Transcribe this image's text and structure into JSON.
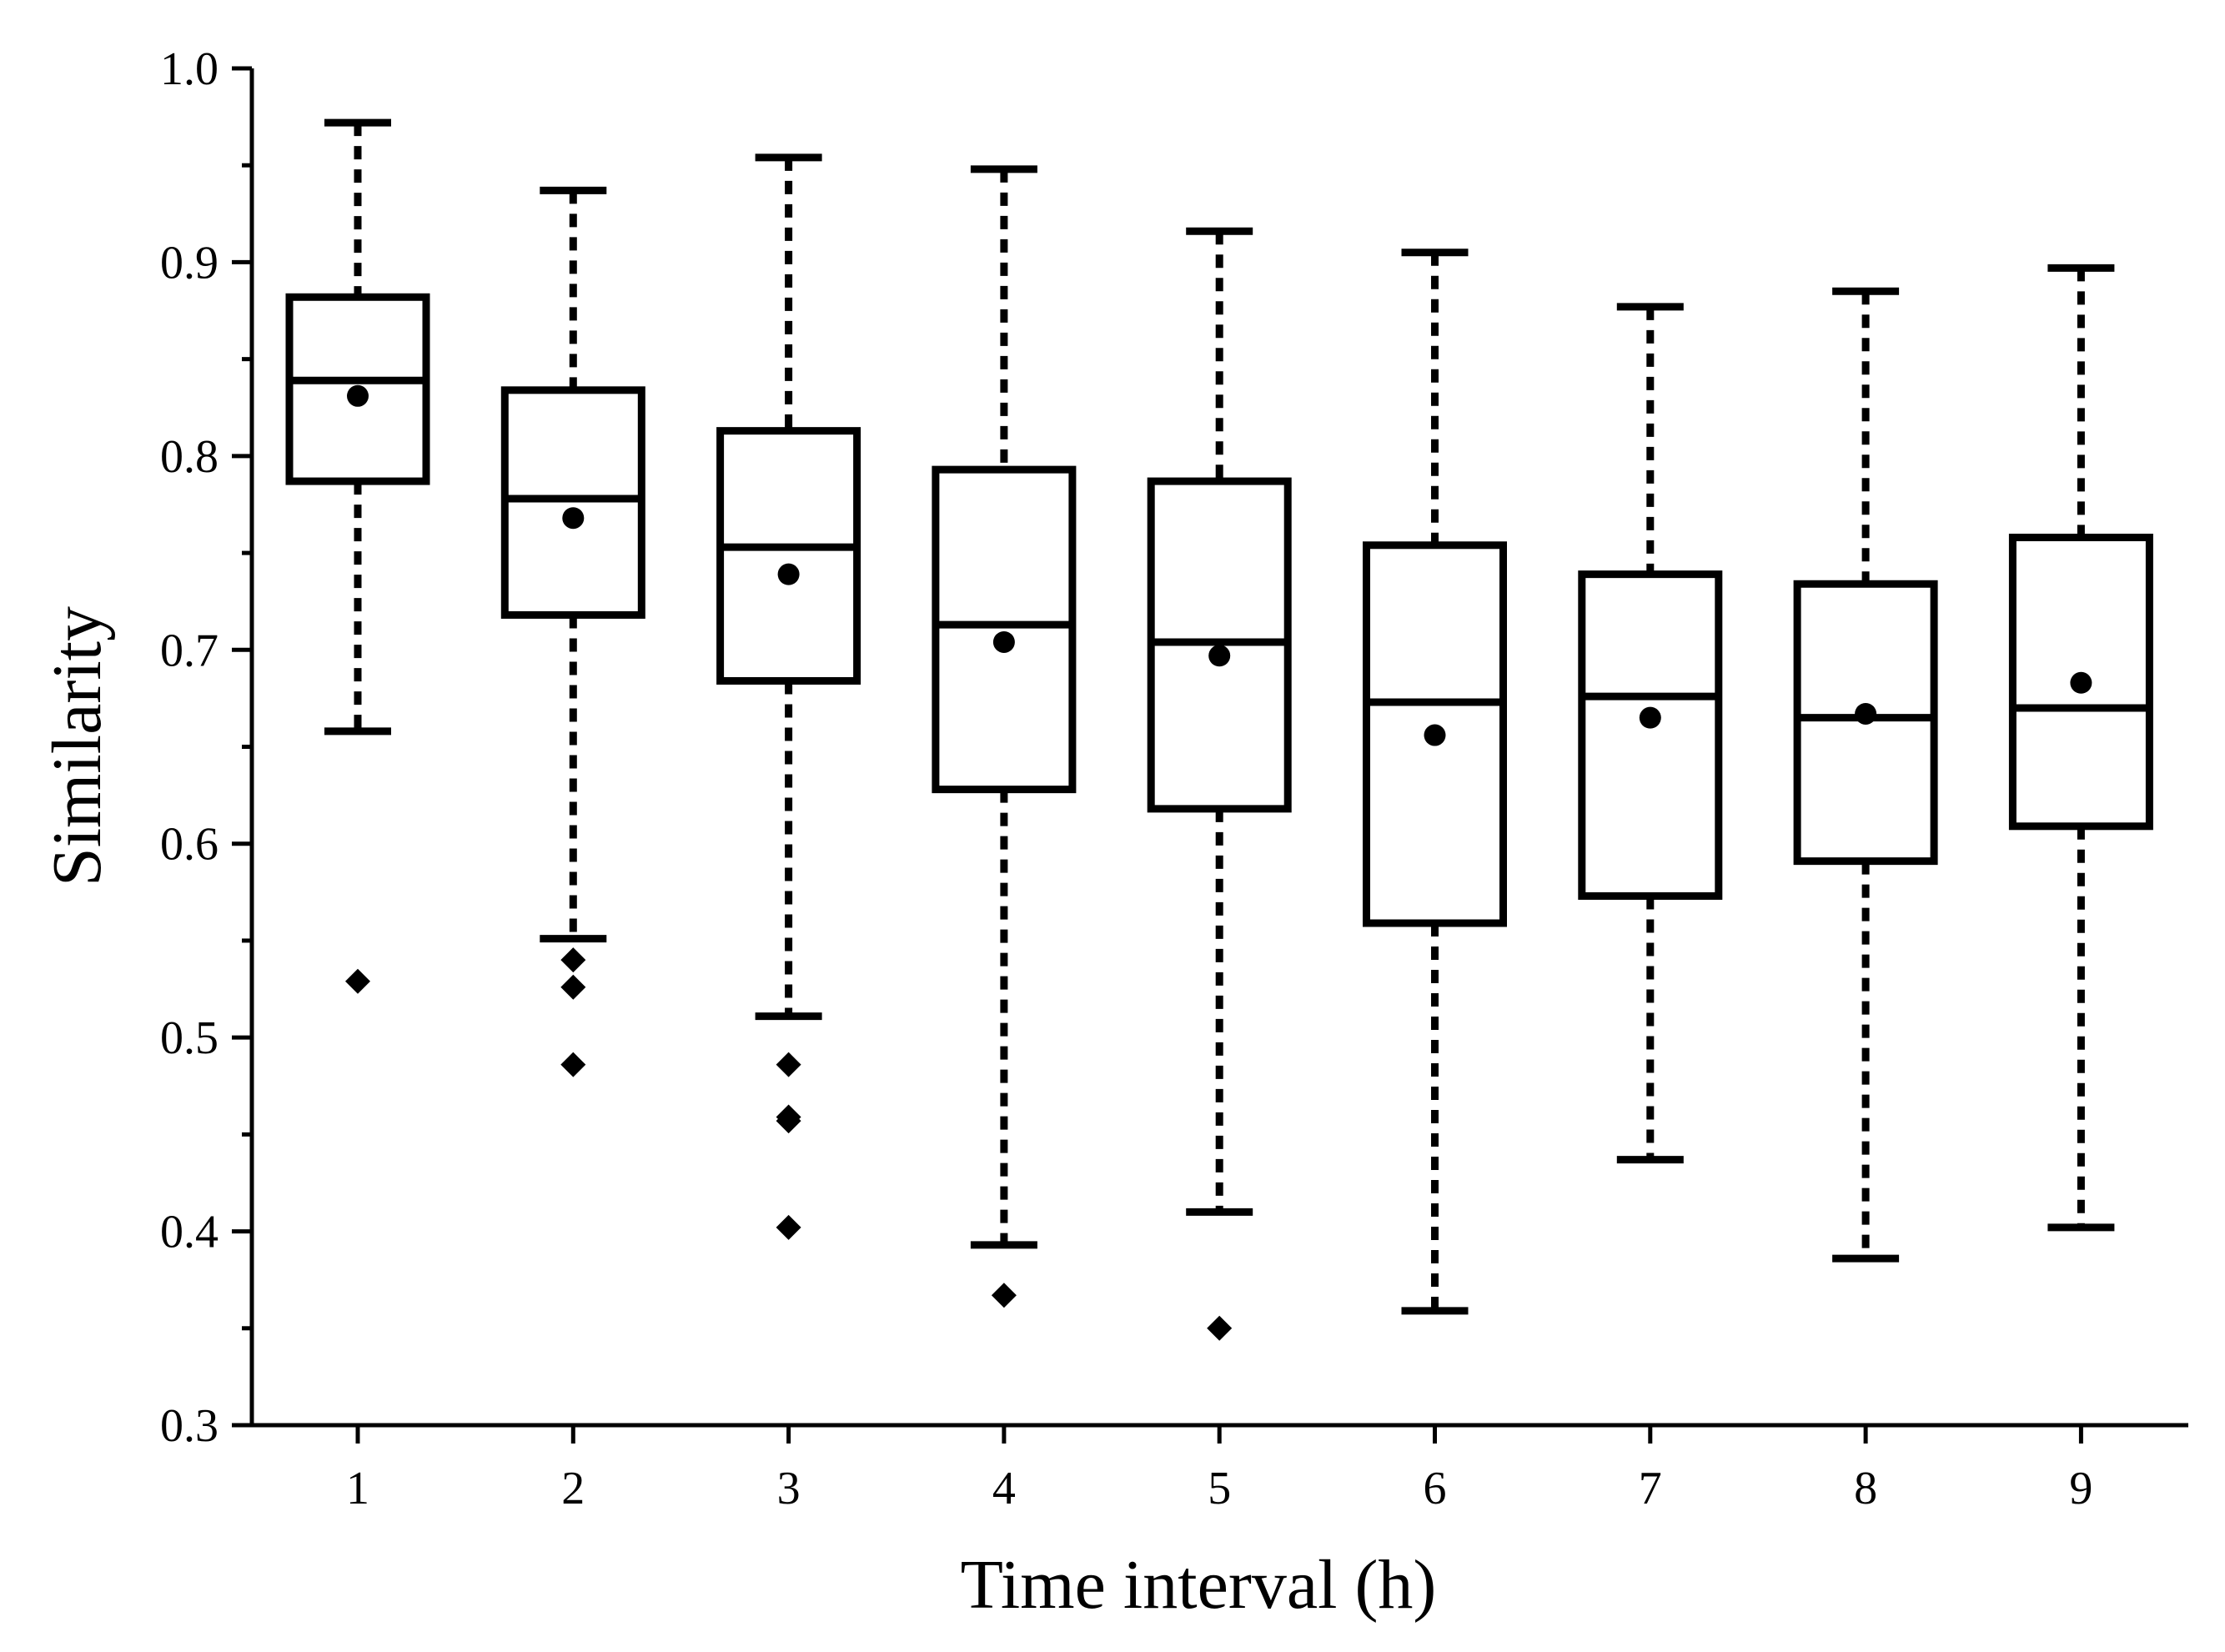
{
  "chart_data": {
    "type": "box",
    "title": "",
    "xlabel": "Time interval (h)",
    "ylabel": "Similarity",
    "ylim": [
      0.3,
      1.0
    ],
    "yticks": [
      "0.3",
      "0.4",
      "0.5",
      "0.6",
      "0.7",
      "0.8",
      "0.9",
      "1.0"
    ],
    "grid": false,
    "categories": [
      "1",
      "2",
      "3",
      "4",
      "5",
      "6",
      "7",
      "8",
      "9"
    ],
    "boxes": [
      {
        "category": "1",
        "whisker_low": 0.658,
        "q1": 0.787,
        "median": 0.839,
        "q3": 0.882,
        "whisker_high": 0.972,
        "mean": 0.831,
        "outliers": [
          0.529
        ]
      },
      {
        "category": "2",
        "whisker_low": 0.551,
        "q1": 0.718,
        "median": 0.778,
        "q3": 0.834,
        "whisker_high": 0.937,
        "mean": 0.768,
        "outliers": [
          0.54,
          0.526,
          0.486
        ]
      },
      {
        "category": "3",
        "whisker_low": 0.511,
        "q1": 0.684,
        "median": 0.753,
        "q3": 0.813,
        "whisker_high": 0.954,
        "mean": 0.739,
        "outliers": [
          0.486,
          0.459,
          0.457,
          0.402
        ]
      },
      {
        "category": "4",
        "whisker_low": 0.393,
        "q1": 0.628,
        "median": 0.713,
        "q3": 0.793,
        "whisker_high": 0.948,
        "mean": 0.704,
        "outliers": [
          0.367
        ]
      },
      {
        "category": "5",
        "whisker_low": 0.41,
        "q1": 0.618,
        "median": 0.704,
        "q3": 0.787,
        "whisker_high": 0.916,
        "mean": 0.697,
        "outliers": [
          0.35
        ]
      },
      {
        "category": "6",
        "whisker_low": 0.359,
        "q1": 0.559,
        "median": 0.673,
        "q3": 0.754,
        "whisker_high": 0.905,
        "mean": 0.656,
        "outliers": []
      },
      {
        "category": "7",
        "whisker_low": 0.437,
        "q1": 0.573,
        "median": 0.676,
        "q3": 0.739,
        "whisker_high": 0.877,
        "mean": 0.665,
        "outliers": []
      },
      {
        "category": "8",
        "whisker_low": 0.386,
        "q1": 0.591,
        "median": 0.665,
        "q3": 0.734,
        "whisker_high": 0.885,
        "mean": 0.667,
        "outliers": []
      },
      {
        "category": "9",
        "whisker_low": 0.402,
        "q1": 0.609,
        "median": 0.67,
        "q3": 0.758,
        "whisker_high": 0.897,
        "mean": 0.683,
        "outliers": []
      }
    ]
  }
}
